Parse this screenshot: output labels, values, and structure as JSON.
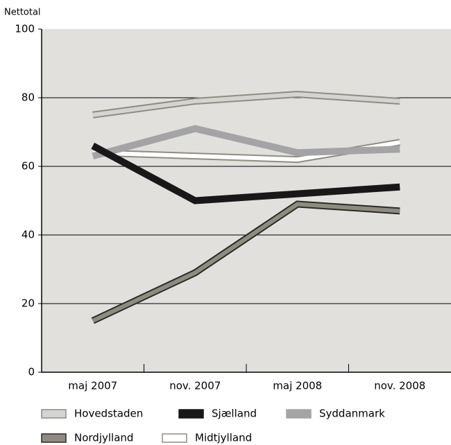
{
  "chart_data": {
    "type": "line",
    "y_label": "Nettotal",
    "categories": [
      "maj 2007",
      "nov. 2007",
      "maj 2008",
      "nov. 2008"
    ],
    "series": [
      {
        "name": "Hovedstaden",
        "color": "#d4d4d2",
        "outline": "#8f8c7f",
        "values": [
          75,
          79,
          81,
          79
        ]
      },
      {
        "name": "Sjælland",
        "color": "#1a1718",
        "values": [
          66,
          50,
          52,
          54
        ]
      },
      {
        "name": "Syddanmark",
        "color": "#a4a4a6",
        "values": [
          63,
          71,
          64,
          65
        ]
      },
      {
        "name": "Nordjylland",
        "color": "#8f8c7f",
        "outline": "#2a2a28",
        "values": [
          15,
          29,
          49,
          47
        ]
      },
      {
        "name": "Midtjylland",
        "color": "#ffffff",
        "outline": "#8f8c7f",
        "values": [
          64,
          63,
          62,
          67
        ]
      }
    ],
    "ylim": [
      0,
      100
    ],
    "yticks": [
      0,
      20,
      40,
      60,
      80,
      100
    ],
    "grid": true
  }
}
